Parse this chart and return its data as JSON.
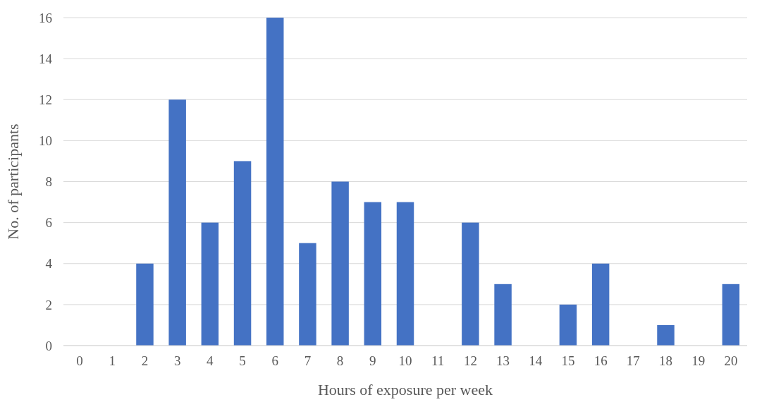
{
  "chart_data": {
    "type": "bar",
    "xlabel": "Hours of exposure per week",
    "ylabel": "No. of participants",
    "categories": [
      "0",
      "1",
      "2",
      "3",
      "4",
      "5",
      "6",
      "7",
      "8",
      "9",
      "10",
      "11",
      "12",
      "13",
      "14",
      "15",
      "16",
      "17",
      "18",
      "19",
      "20"
    ],
    "values": [
      0,
      0,
      4,
      12,
      6,
      9,
      16,
      5,
      8,
      7,
      7,
      0,
      6,
      3,
      0,
      2,
      4,
      0,
      1,
      0,
      3
    ],
    "color": "#4472c4",
    "ylim": [
      0,
      16
    ],
    "yticks": [
      0,
      2,
      4,
      6,
      8,
      10,
      12,
      14,
      16
    ],
    "grid": "y"
  }
}
